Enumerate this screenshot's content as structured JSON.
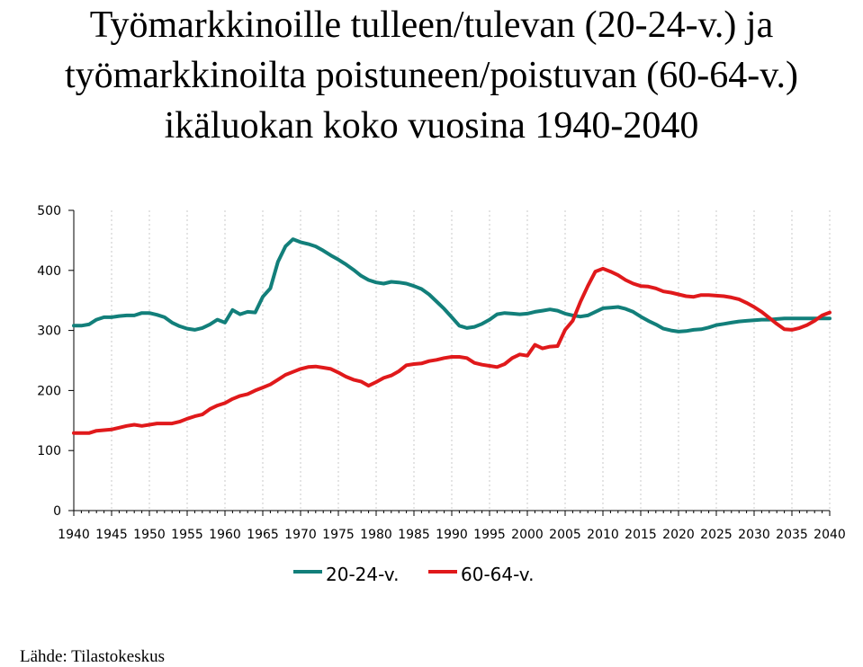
{
  "source": "Lähde: Tilastokeskus",
  "chart_data": {
    "type": "line",
    "title_lines": [
      "Työmarkkinoille tulleen/tulevan (20-24-v.) ja",
      "työmarkkinoilta poistuneen/poistuvan (60-64-v.)",
      "ikäluokan koko vuosina 1940-2040"
    ],
    "xlabel": "",
    "ylabel": "",
    "xlim": [
      1940,
      2040
    ],
    "ylim": [
      0,
      500
    ],
    "x_ticks": [
      1940,
      1945,
      1950,
      1955,
      1960,
      1965,
      1970,
      1975,
      1980,
      1985,
      1990,
      1995,
      2000,
      2005,
      2010,
      2015,
      2020,
      2025,
      2030,
      2035,
      2040
    ],
    "y_ticks": [
      0,
      100,
      200,
      300,
      400,
      500
    ],
    "grid": "dotted-vertical",
    "legend": "bottom",
    "series": [
      {
        "name": "20-24-v.",
        "color": "#127f7a",
        "points": [
          [
            1940,
            308
          ],
          [
            1941,
            308
          ],
          [
            1942,
            310
          ],
          [
            1943,
            318
          ],
          [
            1944,
            322
          ],
          [
            1945,
            322
          ],
          [
            1946,
            324
          ],
          [
            1947,
            325
          ],
          [
            1948,
            325
          ],
          [
            1949,
            329
          ],
          [
            1950,
            329
          ],
          [
            1951,
            326
          ],
          [
            1952,
            322
          ],
          [
            1953,
            313
          ],
          [
            1954,
            307
          ],
          [
            1955,
            303
          ],
          [
            1956,
            301
          ],
          [
            1957,
            304
          ],
          [
            1958,
            310
          ],
          [
            1959,
            318
          ],
          [
            1960,
            313
          ],
          [
            1961,
            334
          ],
          [
            1962,
            327
          ],
          [
            1963,
            331
          ],
          [
            1964,
            330
          ],
          [
            1965,
            356
          ],
          [
            1966,
            370
          ],
          [
            1967,
            414
          ],
          [
            1968,
            440
          ],
          [
            1969,
            452
          ],
          [
            1970,
            447
          ],
          [
            1971,
            444
          ],
          [
            1972,
            440
          ],
          [
            1973,
            433
          ],
          [
            1974,
            425
          ],
          [
            1975,
            418
          ],
          [
            1976,
            410
          ],
          [
            1977,
            401
          ],
          [
            1978,
            391
          ],
          [
            1979,
            384
          ],
          [
            1980,
            380
          ],
          [
            1981,
            378
          ],
          [
            1982,
            381
          ],
          [
            1983,
            380
          ],
          [
            1984,
            378
          ],
          [
            1985,
            374
          ],
          [
            1986,
            369
          ],
          [
            1987,
            360
          ],
          [
            1988,
            348
          ],
          [
            1989,
            336
          ],
          [
            1990,
            322
          ],
          [
            1991,
            308
          ],
          [
            1992,
            304
          ],
          [
            1993,
            306
          ],
          [
            1994,
            311
          ],
          [
            1995,
            318
          ],
          [
            1996,
            327
          ],
          [
            1997,
            329
          ],
          [
            1998,
            328
          ],
          [
            1999,
            327
          ],
          [
            2000,
            328
          ],
          [
            2001,
            331
          ],
          [
            2002,
            333
          ],
          [
            2003,
            335
          ],
          [
            2004,
            333
          ],
          [
            2005,
            328
          ],
          [
            2006,
            325
          ],
          [
            2007,
            323
          ],
          [
            2008,
            325
          ],
          [
            2009,
            331
          ],
          [
            2010,
            337
          ],
          [
            2011,
            338
          ],
          [
            2012,
            339
          ],
          [
            2013,
            336
          ],
          [
            2014,
            331
          ],
          [
            2015,
            323
          ],
          [
            2016,
            316
          ],
          [
            2017,
            310
          ],
          [
            2018,
            303
          ],
          [
            2019,
            300
          ],
          [
            2020,
            298
          ],
          [
            2021,
            299
          ],
          [
            2022,
            301
          ],
          [
            2023,
            302
          ],
          [
            2024,
            305
          ],
          [
            2025,
            309
          ],
          [
            2026,
            311
          ],
          [
            2027,
            313
          ],
          [
            2028,
            315
          ],
          [
            2029,
            316
          ],
          [
            2030,
            317
          ],
          [
            2031,
            318
          ],
          [
            2032,
            318
          ],
          [
            2033,
            319
          ],
          [
            2034,
            320
          ],
          [
            2035,
            320
          ],
          [
            2036,
            320
          ],
          [
            2037,
            320
          ],
          [
            2038,
            320
          ],
          [
            2039,
            320
          ],
          [
            2040,
            320
          ]
        ]
      },
      {
        "name": "60-64-v.",
        "color": "#e0191b",
        "points": [
          [
            1940,
            129
          ],
          [
            1941,
            129
          ],
          [
            1942,
            129
          ],
          [
            1943,
            133
          ],
          [
            1944,
            134
          ],
          [
            1945,
            135
          ],
          [
            1946,
            138
          ],
          [
            1947,
            141
          ],
          [
            1948,
            143
          ],
          [
            1949,
            141
          ],
          [
            1950,
            143
          ],
          [
            1951,
            145
          ],
          [
            1952,
            145
          ],
          [
            1953,
            145
          ],
          [
            1954,
            148
          ],
          [
            1955,
            153
          ],
          [
            1956,
            157
          ],
          [
            1957,
            160
          ],
          [
            1958,
            169
          ],
          [
            1959,
            175
          ],
          [
            1960,
            179
          ],
          [
            1961,
            186
          ],
          [
            1962,
            191
          ],
          [
            1963,
            194
          ],
          [
            1964,
            200
          ],
          [
            1965,
            205
          ],
          [
            1966,
            210
          ],
          [
            1967,
            218
          ],
          [
            1968,
            226
          ],
          [
            1969,
            231
          ],
          [
            1970,
            236
          ],
          [
            1971,
            239
          ],
          [
            1972,
            240
          ],
          [
            1973,
            238
          ],
          [
            1974,
            236
          ],
          [
            1975,
            230
          ],
          [
            1976,
            223
          ],
          [
            1977,
            218
          ],
          [
            1978,
            215
          ],
          [
            1979,
            208
          ],
          [
            1980,
            214
          ],
          [
            1981,
            221
          ],
          [
            1982,
            225
          ],
          [
            1983,
            232
          ],
          [
            1984,
            242
          ],
          [
            1985,
            244
          ],
          [
            1986,
            245
          ],
          [
            1987,
            249
          ],
          [
            1988,
            251
          ],
          [
            1989,
            254
          ],
          [
            1990,
            256
          ],
          [
            1991,
            256
          ],
          [
            1992,
            254
          ],
          [
            1993,
            246
          ],
          [
            1994,
            243
          ],
          [
            1995,
            241
          ],
          [
            1996,
            239
          ],
          [
            1997,
            244
          ],
          [
            1998,
            254
          ],
          [
            1999,
            260
          ],
          [
            2000,
            258
          ],
          [
            2001,
            276
          ],
          [
            2002,
            270
          ],
          [
            2003,
            273
          ],
          [
            2004,
            274
          ],
          [
            2005,
            301
          ],
          [
            2006,
            316
          ],
          [
            2007,
            347
          ],
          [
            2008,
            374
          ],
          [
            2009,
            398
          ],
          [
            2010,
            403
          ],
          [
            2011,
            398
          ],
          [
            2012,
            392
          ],
          [
            2013,
            384
          ],
          [
            2014,
            378
          ],
          [
            2015,
            374
          ],
          [
            2016,
            373
          ],
          [
            2017,
            370
          ],
          [
            2018,
            365
          ],
          [
            2019,
            363
          ],
          [
            2020,
            360
          ],
          [
            2021,
            357
          ],
          [
            2022,
            356
          ],
          [
            2023,
            359
          ],
          [
            2024,
            359
          ],
          [
            2025,
            358
          ],
          [
            2026,
            357
          ],
          [
            2027,
            355
          ],
          [
            2028,
            352
          ],
          [
            2029,
            346
          ],
          [
            2030,
            339
          ],
          [
            2031,
            331
          ],
          [
            2032,
            321
          ],
          [
            2033,
            311
          ],
          [
            2034,
            302
          ],
          [
            2035,
            301
          ],
          [
            2036,
            304
          ],
          [
            2037,
            309
          ],
          [
            2038,
            316
          ],
          [
            2039,
            325
          ],
          [
            2040,
            330
          ]
        ]
      }
    ]
  }
}
